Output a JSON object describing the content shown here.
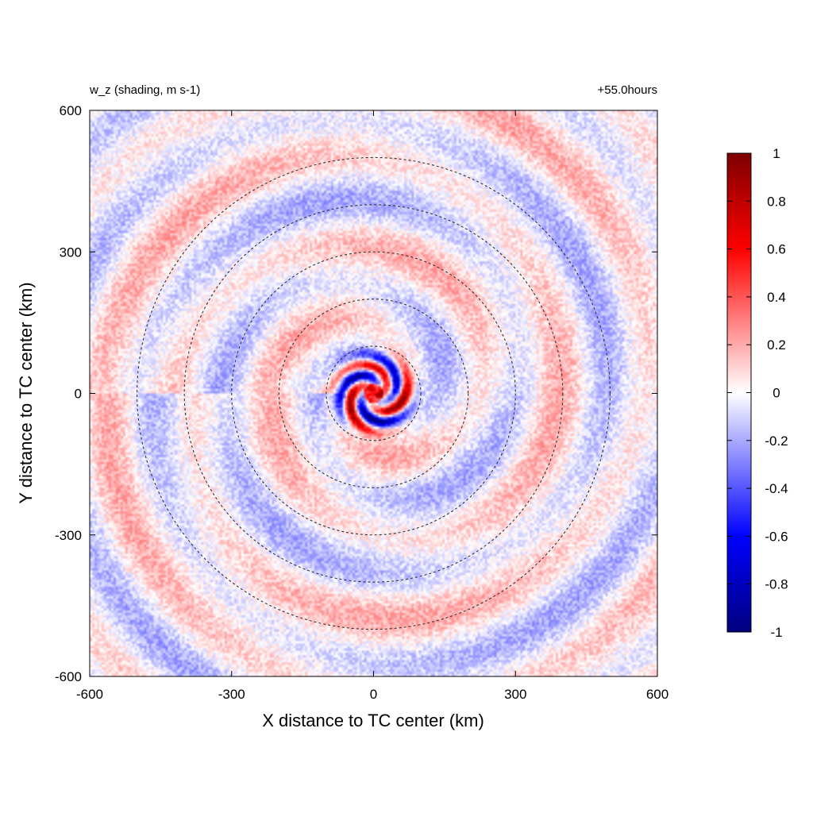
{
  "chart_data": {
    "type": "heatmap",
    "title_left": "w_z (shading, m s-1)",
    "title_right": "+55.0hours",
    "xlabel": "X distance to TC center (km)",
    "ylabel": "Y distance to TC center (km)",
    "xlim": [
      -600,
      600
    ],
    "ylim": [
      -600,
      600
    ],
    "xticks": [
      -600,
      -300,
      0,
      300,
      600
    ],
    "yticks": [
      -600,
      -300,
      0,
      300,
      600
    ],
    "colorbar": {
      "min": -1,
      "max": 1,
      "ticks": [
        "1",
        "0.8",
        "0.6",
        "0.4",
        "0.2",
        "0",
        "-0.2",
        "-0.4",
        "-0.6",
        "-0.8",
        "-1"
      ],
      "stops": [
        {
          "value": -1,
          "color": "#00007f"
        },
        {
          "value": -0.6,
          "color": "#0000ff"
        },
        {
          "value": 0,
          "color": "#ffffff"
        },
        {
          "value": 0.6,
          "color": "#ff0000"
        },
        {
          "value": 1,
          "color": "#7f0000"
        }
      ]
    },
    "range_rings_km": [
      100,
      200,
      300,
      400,
      500
    ],
    "grid": false
  }
}
